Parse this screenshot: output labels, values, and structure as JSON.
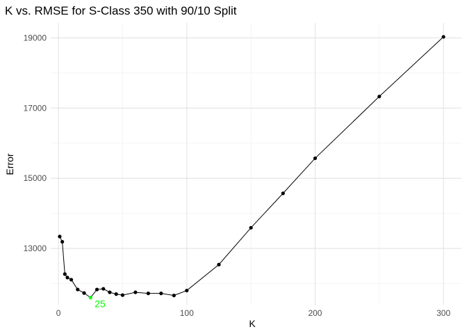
{
  "chart_data": {
    "type": "line",
    "title": "K vs. RMSE for S-Class 350 with 90/10 Split",
    "xlabel": "K",
    "ylabel": "Error",
    "x": [
      1,
      3,
      5,
      7,
      10,
      15,
      20,
      25,
      30,
      35,
      40,
      45,
      50,
      60,
      70,
      80,
      90,
      100,
      125,
      150,
      175,
      200,
      250,
      300
    ],
    "y": [
      13340,
      13190,
      12270,
      12170,
      12110,
      11830,
      11730,
      11600,
      11830,
      11850,
      11750,
      11700,
      11670,
      11750,
      11720,
      11720,
      11660,
      11800,
      12540,
      13590,
      14570,
      15570,
      17330,
      19030
    ],
    "xlim": [
      -6,
      314
    ],
    "ylim": [
      11395,
      19425
    ],
    "x_ticks": [
      0,
      100,
      200,
      300
    ],
    "x_tick_labels": [
      "0",
      "100",
      "200",
      "300"
    ],
    "y_ticks": [
      13000,
      15000,
      17000,
      19000
    ],
    "y_tick_labels": [
      "13000",
      "15000",
      "17000",
      "19000"
    ],
    "grid": true,
    "line_color": "#000000",
    "highlight": {
      "x": 25,
      "y": 11600,
      "label": "25",
      "color": "#00ff00"
    }
  }
}
